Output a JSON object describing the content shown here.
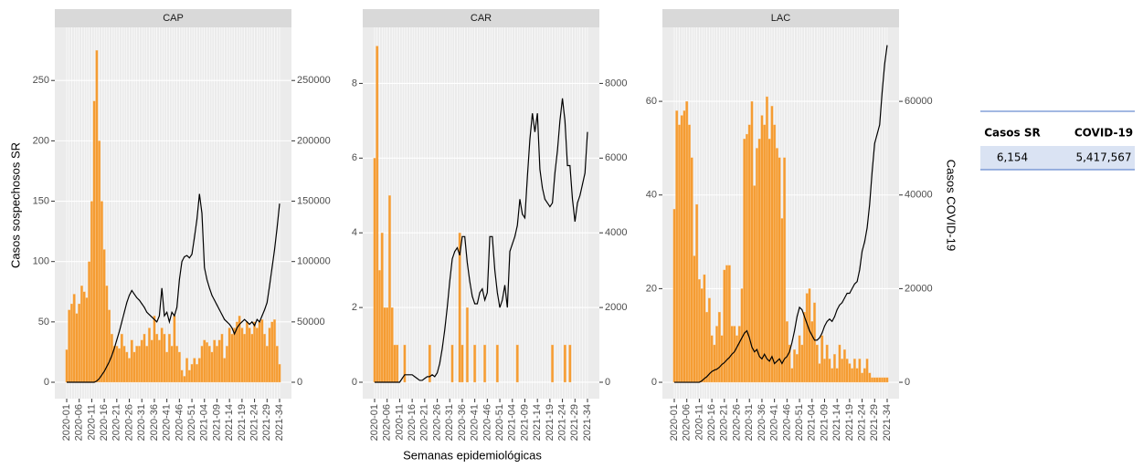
{
  "chart_data": [
    {
      "type": "bar",
      "title": "CAP",
      "y_label": "Casos sospechosos SR",
      "categories": [
        "2020-01",
        null,
        null,
        null,
        null,
        "2020-06",
        null,
        null,
        null,
        null,
        "2020-11",
        null,
        null,
        null,
        null,
        "2020-16",
        null,
        null,
        null,
        null,
        "2020-21",
        null,
        null,
        null,
        null,
        "2020-26",
        null,
        null,
        null,
        null,
        "2020-31",
        null,
        null,
        null,
        null,
        "2020-36",
        null,
        null,
        null,
        null,
        "2020-41",
        null,
        null,
        null,
        null,
        "2020-46",
        null,
        null,
        null,
        null,
        "2020-51",
        null,
        null,
        null,
        null,
        "2021-04",
        null,
        null,
        null,
        null,
        "2021-09",
        null,
        null,
        null,
        null,
        "2021-14",
        null,
        null,
        null,
        null,
        "2021-19",
        null,
        null,
        null,
        null,
        "2021-24",
        null,
        null,
        null,
        null,
        "2021-29",
        null,
        null,
        null,
        null,
        "2021-34"
      ],
      "ylim": [
        -13.6,
        294
      ],
      "yticks": [
        0,
        50,
        100,
        150,
        200,
        250
      ],
      "y2lim": [
        -13600,
        294000
      ],
      "y2ticks": [
        0,
        50000,
        100000,
        150000,
        200000,
        250000
      ],
      "grid": true,
      "series": [
        {
          "type": "bar",
          "color": "#f59c32",
          "values": [
            27,
            60,
            65,
            73,
            57,
            65,
            80,
            75,
            70,
            100,
            150,
            233,
            275,
            200,
            150,
            110,
            80,
            60,
            40,
            30,
            30,
            28,
            40,
            30,
            25,
            20,
            35,
            25,
            30,
            30,
            35,
            40,
            30,
            45,
            35,
            55,
            40,
            35,
            45,
            40,
            25,
            40,
            30,
            55,
            30,
            25,
            10,
            5,
            20,
            10,
            15,
            20,
            15,
            20,
            30,
            35,
            33,
            30,
            25,
            35,
            30,
            35,
            40,
            20,
            30,
            45,
            40,
            45,
            50,
            55,
            45,
            40,
            50,
            45,
            40,
            50,
            45,
            50,
            52,
            40,
            30,
            45,
            50,
            52,
            30,
            15
          ]
        },
        {
          "type": "line",
          "axis": "y2",
          "color": "#000000",
          "values": [
            0,
            0,
            0,
            0,
            0,
            0,
            0,
            0,
            0,
            0,
            0,
            0,
            1000,
            3000,
            6000,
            9000,
            13000,
            17000,
            22000,
            28000,
            35000,
            42000,
            50000,
            58000,
            66000,
            72000,
            76000,
            73000,
            70000,
            68000,
            65000,
            62000,
            58000,
            56000,
            54000,
            52000,
            50000,
            55000,
            78000,
            55000,
            58000,
            50000,
            58000,
            55000,
            62000,
            85000,
            100000,
            104000,
            105000,
            103000,
            106000,
            120000,
            135000,
            156000,
            140000,
            95000,
            85000,
            78000,
            72000,
            68000,
            64000,
            60000,
            56000,
            52000,
            50000,
            48000,
            45000,
            40000,
            45000,
            48000,
            50000,
            52000,
            50000,
            48000,
            50000,
            47000,
            52000,
            50000,
            55000,
            60000,
            66000,
            80000,
            95000,
            110000,
            128000,
            148000
          ]
        }
      ]
    },
    {
      "type": "bar",
      "title": "CAR",
      "x_label": "Semanas epidemiológicas",
      "categories": [
        "2020-01",
        null,
        null,
        null,
        null,
        "2020-06",
        null,
        null,
        null,
        null,
        "2020-11",
        null,
        null,
        null,
        null,
        "2020-16",
        null,
        null,
        null,
        null,
        "2020-21",
        null,
        null,
        null,
        null,
        "2020-26",
        null,
        null,
        null,
        null,
        "2020-31",
        null,
        null,
        null,
        null,
        "2020-36",
        null,
        null,
        null,
        null,
        "2020-41",
        null,
        null,
        null,
        null,
        "2020-46",
        null,
        null,
        null,
        null,
        "2020-51",
        null,
        null,
        null,
        null,
        "2021-04",
        null,
        null,
        null,
        null,
        "2021-09",
        null,
        null,
        null,
        null,
        "2021-14",
        null,
        null,
        null,
        null,
        "2021-19",
        null,
        null,
        null,
        null,
        "2021-24",
        null,
        null,
        null,
        null,
        "2021-29",
        null,
        null,
        null,
        null,
        "2021-34"
      ],
      "ylim": [
        -0.44,
        9.5
      ],
      "yticks": [
        0,
        2,
        4,
        6,
        8
      ],
      "y2lim": [
        -440,
        9500
      ],
      "y2ticks": [
        0,
        2000,
        4000,
        6000,
        8000
      ],
      "grid": true,
      "series": [
        {
          "type": "bar",
          "color": "#f59c32",
          "values": [
            6,
            9,
            3,
            4,
            2,
            2,
            5,
            2,
            1,
            1,
            0,
            0,
            1,
            0,
            0,
            0,
            0,
            0,
            0,
            0,
            0,
            0,
            1,
            0,
            0,
            0,
            0,
            0,
            0,
            0,
            0,
            1,
            0,
            0,
            4,
            1,
            0,
            2,
            0,
            0,
            1,
            0,
            0,
            0,
            1,
            0,
            0,
            0,
            0,
            1,
            0,
            0,
            0,
            0,
            0,
            0,
            0,
            1,
            0,
            0,
            0,
            0,
            0,
            0,
            0,
            0,
            0,
            0,
            0,
            0,
            0,
            1,
            0,
            0,
            0,
            0,
            1,
            0,
            1,
            0,
            0,
            0,
            0,
            0,
            0,
            0
          ]
        },
        {
          "type": "line",
          "axis": "y2",
          "color": "#000000",
          "values": [
            0,
            0,
            0,
            0,
            0,
            0,
            0,
            0,
            0,
            0,
            0,
            100,
            200,
            200,
            200,
            200,
            150,
            100,
            50,
            50,
            100,
            150,
            150,
            200,
            150,
            250,
            500,
            900,
            1400,
            2000,
            2700,
            3300,
            3500,
            3600,
            3400,
            3900,
            3900,
            3200,
            2700,
            2300,
            2100,
            2100,
            2400,
            2500,
            2200,
            2400,
            3900,
            3900,
            3000,
            2400,
            2000,
            2200,
            2600,
            2000,
            3500,
            3700,
            3900,
            4200,
            4900,
            4500,
            4400,
            5500,
            6500,
            7200,
            6700,
            7200,
            5700,
            5200,
            4900,
            4800,
            4700,
            4800,
            5600,
            6200,
            7000,
            7600,
            7000,
            5800,
            5800,
            4900,
            4300,
            4800,
            5000,
            5300,
            5600,
            6700
          ]
        }
      ]
    },
    {
      "type": "bar",
      "title": "LAC",
      "y2_label": "Casos COVID-19",
      "categories": [
        "2020-01",
        null,
        null,
        null,
        null,
        "2020-06",
        null,
        null,
        null,
        null,
        "2020-11",
        null,
        null,
        null,
        null,
        "2020-16",
        null,
        null,
        null,
        null,
        "2020-21",
        null,
        null,
        null,
        null,
        "2020-26",
        null,
        null,
        null,
        null,
        "2020-31",
        null,
        null,
        null,
        null,
        "2020-36",
        null,
        null,
        null,
        null,
        "2020-41",
        null,
        null,
        null,
        null,
        "2020-46",
        null,
        null,
        null,
        null,
        "2020-51",
        null,
        null,
        null,
        null,
        "2021-04",
        null,
        null,
        null,
        null,
        "2021-09",
        null,
        null,
        null,
        null,
        "2021-14",
        null,
        null,
        null,
        null,
        "2021-19",
        null,
        null,
        null,
        null,
        "2021-24",
        null,
        null,
        null,
        null,
        "2021-29",
        null,
        null,
        null,
        null,
        "2021-34"
      ],
      "ylim": [
        -3.5,
        75.8
      ],
      "yticks": [
        0,
        20,
        40,
        60
      ],
      "y2lim": [
        -3500,
        75800
      ],
      "y2ticks": [
        0,
        20000,
        40000,
        60000
      ],
      "grid": true,
      "series": [
        {
          "type": "bar",
          "color": "#f59c32",
          "values": [
            37,
            58,
            55,
            57,
            58,
            60,
            55,
            48,
            27,
            38,
            22,
            20,
            23,
            15,
            18,
            10,
            8,
            12,
            15,
            10,
            24,
            25,
            25,
            12,
            12,
            10,
            12,
            20,
            52,
            53,
            55,
            60,
            42,
            50,
            52,
            57,
            55,
            61,
            52,
            59,
            55,
            50,
            48,
            35,
            48,
            13,
            8,
            3,
            7,
            6,
            10,
            8,
            15,
            19,
            20,
            13,
            17,
            8,
            4,
            10,
            5,
            8,
            5,
            3,
            6,
            3,
            8,
            5,
            7,
            5,
            4,
            3,
            5,
            3,
            5,
            2,
            3,
            5,
            2,
            1,
            1,
            1,
            1,
            1,
            1,
            1
          ]
        },
        {
          "type": "line",
          "axis": "y2",
          "color": "#000000",
          "values": [
            0,
            0,
            0,
            0,
            0,
            0,
            0,
            0,
            0,
            0,
            0,
            300,
            800,
            1200,
            1800,
            2300,
            2600,
            2800,
            3200,
            3800,
            4200,
            4800,
            5300,
            6000,
            6500,
            7500,
            8500,
            9500,
            10500,
            11000,
            9500,
            7500,
            6500,
            7000,
            5500,
            5000,
            6000,
            5000,
            4500,
            5500,
            4000,
            4500,
            5000,
            4000,
            5000,
            5500,
            6500,
            8500,
            11000,
            14000,
            16000,
            15500,
            14000,
            12500,
            11000,
            10000,
            9000,
            9000,
            9500,
            10500,
            12000,
            13000,
            13500,
            13000,
            14000,
            15500,
            16500,
            17000,
            18000,
            19000,
            19000,
            20000,
            21000,
            21500,
            24000,
            28000,
            30000,
            33000,
            38000,
            45000,
            51000,
            53000,
            55000,
            62000,
            68000,
            72000
          ]
        }
      ]
    }
  ],
  "table": {
    "header": [
      "Casos SR",
      "COVID-19"
    ],
    "rows": [
      [
        "6,154",
        "5,417,567"
      ]
    ]
  }
}
